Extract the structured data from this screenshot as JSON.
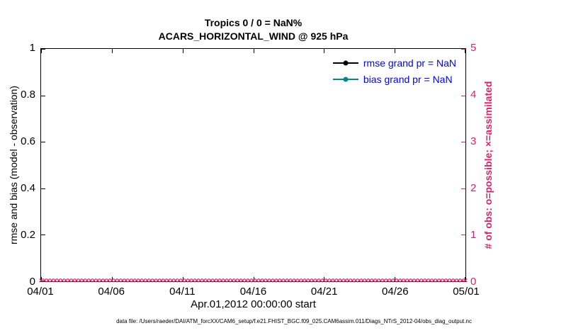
{
  "chart_data": {
    "type": "line",
    "title": "Tropics 0 / 0 = NaN%",
    "subtitle": "ACARS_HORIZONTAL_WIND @ 925 hPa",
    "xlabel": "Apr.01,2012 00:00:00 start",
    "ylabel_left": "rmse and bias (model - observation)",
    "ylabel_right": "# of obs: o=possible; ×=assimilated",
    "x_tick_labels": [
      "04/01",
      "04/06",
      "04/11",
      "04/16",
      "04/21",
      "04/26",
      "05/01"
    ],
    "y_left_tick_labels": [
      "0",
      "0.2",
      "0.4",
      "0.6",
      "0.8",
      "1"
    ],
    "y_right_tick_labels": [
      "0",
      "1",
      "2",
      "3",
      "4",
      "5"
    ],
    "ylim_left": [
      0,
      1
    ],
    "ylim_right": [
      0,
      5
    ],
    "grid": false,
    "legend_position": "top-right-inside",
    "series": [
      {
        "name": "rmse grand pr = NaN",
        "color": "#000000",
        "marker": "circle",
        "values": []
      },
      {
        "name": "bias grand pr = NaN",
        "color": "#008b8b",
        "marker": "circle",
        "values": []
      }
    ],
    "obs_counts": {
      "possible_symbol": "o",
      "assimilated_symbol": "×",
      "color": "#de2168",
      "value": 0,
      "points": 121
    },
    "footer": "data file: /Users/raeder/DAI/ATM_forcXX/CAM6_setup/f.e21.FHIST_BGC.f09_025.CAM6assim.011/Diags_NTrS_2012-04/obs_diag_output.nc"
  },
  "colors": {
    "right_axis": "#de2168",
    "legend_text": "#0000ff",
    "axis_line": "#000000"
  }
}
